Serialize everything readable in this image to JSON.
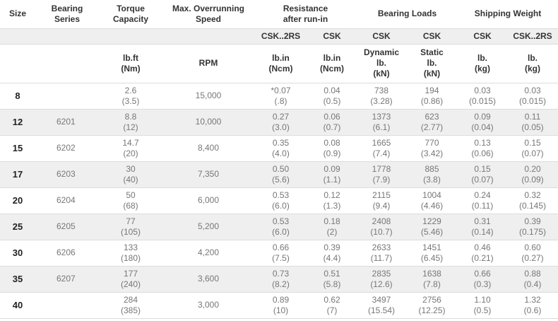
{
  "header": {
    "groups": [
      [
        "Size"
      ],
      [
        "Bearing",
        "Series"
      ],
      [
        "Torque",
        "Capacity"
      ],
      [
        "Max. Overrunning",
        "Speed"
      ],
      [
        "Resistance",
        "after run-in"
      ],
      [
        "Bearing Loads"
      ],
      [
        "Shipping Weight"
      ]
    ],
    "subheads": [
      "CSK..2RS",
      "CSK",
      "CSK",
      "CSK",
      "CSK",
      "CSK..2RS"
    ],
    "units": [
      [
        "lb.ft",
        "(Nm)"
      ],
      [
        "RPM"
      ],
      [
        "lb.in",
        "(Ncm)"
      ],
      [
        "lb.in",
        "(Ncm)"
      ],
      [
        "Dynamic",
        "lb.",
        "(kN)"
      ],
      [
        "Static",
        "lb.",
        "(kN)"
      ],
      [
        "lb.",
        "(kg)"
      ],
      [
        "lb.",
        "(kg)"
      ]
    ]
  },
  "table": {
    "rows": [
      {
        "size": "8",
        "series": null,
        "cells": [
          [
            "2.6",
            "(3.5)"
          ],
          [
            "15,000"
          ],
          [
            "*0.07",
            "(.8)"
          ],
          [
            "0.04",
            "(0.5)"
          ],
          [
            "738",
            "(3.28)"
          ],
          [
            "194",
            "(0.86)"
          ],
          [
            "0.03",
            "(0.015)"
          ],
          [
            "0.03",
            "(0.015)"
          ]
        ]
      },
      {
        "size": "12",
        "series": "6201",
        "cells": [
          [
            "8.8",
            "(12)"
          ],
          [
            "10,000"
          ],
          [
            "0.27",
            "(3.0)"
          ],
          [
            "0.06",
            "(0.7)"
          ],
          [
            "1373",
            "(6.1)"
          ],
          [
            "623",
            "(2.77)"
          ],
          [
            "0.09",
            "(0.04)"
          ],
          [
            "0.11",
            "(0.05)"
          ]
        ]
      },
      {
        "size": "15",
        "series": "6202",
        "cells": [
          [
            "14.7",
            "(20)"
          ],
          [
            "8,400"
          ],
          [
            "0.35",
            "(4.0)"
          ],
          [
            "0.08",
            "(0.9)"
          ],
          [
            "1665",
            "(7.4)"
          ],
          [
            "770",
            "(3.42)"
          ],
          [
            "0.13",
            "(0.06)"
          ],
          [
            "0.15",
            "(0.07)"
          ]
        ]
      },
      {
        "size": "17",
        "series": "6203",
        "cells": [
          [
            "30",
            "(40)"
          ],
          [
            "7,350"
          ],
          [
            "0.50",
            "(5.6)"
          ],
          [
            "0.09",
            "(1.1)"
          ],
          [
            "1778",
            "(7.9)"
          ],
          [
            "885",
            "(3.8)"
          ],
          [
            "0.15",
            "(0.07)"
          ],
          [
            "0.20",
            "(0.09)"
          ]
        ]
      },
      {
        "size": "20",
        "series": "6204",
        "cells": [
          [
            "50",
            "(68)"
          ],
          [
            "6,000"
          ],
          [
            "0.53",
            "(6.0)"
          ],
          [
            "0.12",
            "(1.3)"
          ],
          [
            "2115",
            "(9.4)"
          ],
          [
            "1004",
            "(4.46)"
          ],
          [
            "0.24",
            "(0.11)"
          ],
          [
            "0.32",
            "(0.145)"
          ]
        ]
      },
      {
        "size": "25",
        "series": "6205",
        "cells": [
          [
            "77",
            "(105)"
          ],
          [
            "5,200"
          ],
          [
            "0.53",
            "(6.0)"
          ],
          [
            "0.18",
            "(2)"
          ],
          [
            "2408",
            "(10.7)"
          ],
          [
            "1229",
            "(5.46)"
          ],
          [
            "0.31",
            "(0.14)"
          ],
          [
            "0.39",
            "(0.175)"
          ]
        ]
      },
      {
        "size": "30",
        "series": "6206",
        "cells": [
          [
            "133",
            "(180)"
          ],
          [
            "4,200"
          ],
          [
            "0.66",
            "(7.5)"
          ],
          [
            "0.39",
            "(4.4)"
          ],
          [
            "2633",
            "(11.7)"
          ],
          [
            "1451",
            "(6.45)"
          ],
          [
            "0.46",
            "(0.21)"
          ],
          [
            "0.60",
            "(0.27)"
          ]
        ]
      },
      {
        "size": "35",
        "series": "6207",
        "cells": [
          [
            "177",
            "(240)"
          ],
          [
            "3,600"
          ],
          [
            "0.73",
            "(8.2)"
          ],
          [
            "0.51",
            "(5.8)"
          ],
          [
            "2835",
            "(12.6)"
          ],
          [
            "1638",
            "(7.8)"
          ],
          [
            "0.66",
            "(0.3)"
          ],
          [
            "0.88",
            "(0.4)"
          ]
        ]
      },
      {
        "size": "40",
        "series": null,
        "cells": [
          [
            "284",
            "(385)"
          ],
          [
            "3,000"
          ],
          [
            "0.89",
            "(10)"
          ],
          [
            "0.62",
            "(7)"
          ],
          [
            "3497",
            "(15.54)"
          ],
          [
            "2756",
            "(12.25)"
          ],
          [
            "1.10",
            "(0.5)"
          ],
          [
            "1.32",
            "(0.6)"
          ]
        ]
      }
    ]
  }
}
